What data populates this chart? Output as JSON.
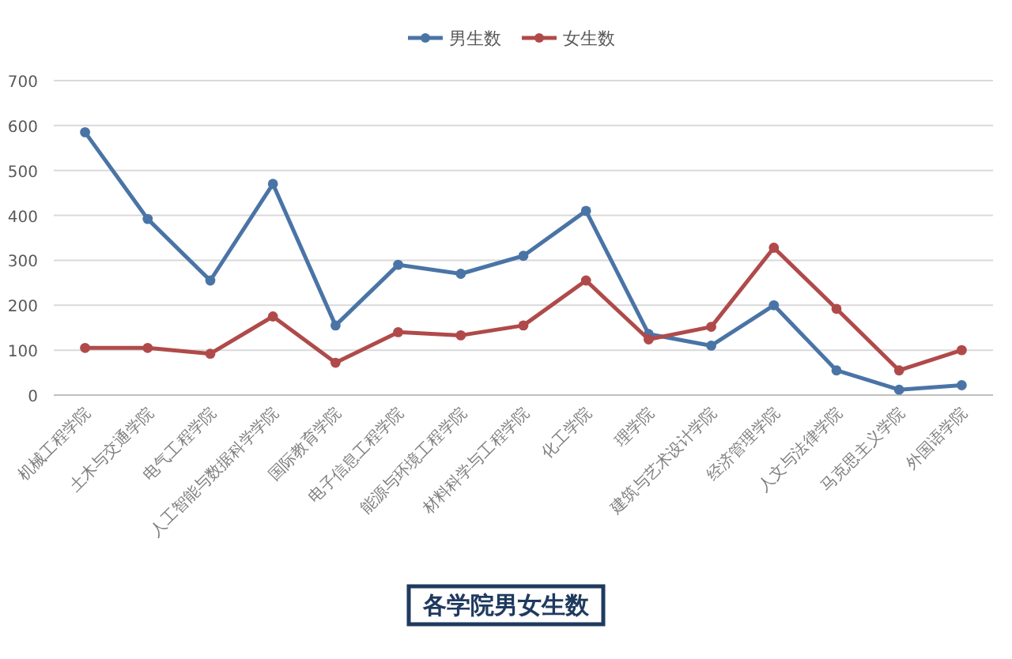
{
  "chart_data": {
    "type": "line",
    "title": "各学院男女生数",
    "categories": [
      "机械工程学院",
      "土木与交通学院",
      "电气工程学院",
      "人工智能与数据科学学院",
      "国际教育学院",
      "电子信息工程学院",
      "能源与环境工程学院",
      "材料科学与工程学院",
      "化工学院",
      "理学院",
      "建筑与艺术设计学院",
      "经济管理学院",
      "人文与法律学院",
      "马克思主义学院",
      "外国语学院"
    ],
    "series": [
      {
        "name": "男生数",
        "color": "#4a74a6",
        "values": [
          585,
          392,
          255,
          470,
          155,
          290,
          270,
          310,
          410,
          136,
          110,
          200,
          55,
          12,
          22
        ]
      },
      {
        "name": "女生数",
        "color": "#b04a4a",
        "values": [
          105,
          105,
          92,
          175,
          72,
          140,
          133,
          155,
          255,
          124,
          152,
          328,
          192,
          55,
          100
        ]
      }
    ],
    "ylim": [
      0,
      700
    ],
    "yticks": [
      0,
      100,
      200,
      300,
      400,
      500,
      600,
      700
    ],
    "grid": "y",
    "legend": "top",
    "marker": "circle",
    "line_style": "solid"
  }
}
